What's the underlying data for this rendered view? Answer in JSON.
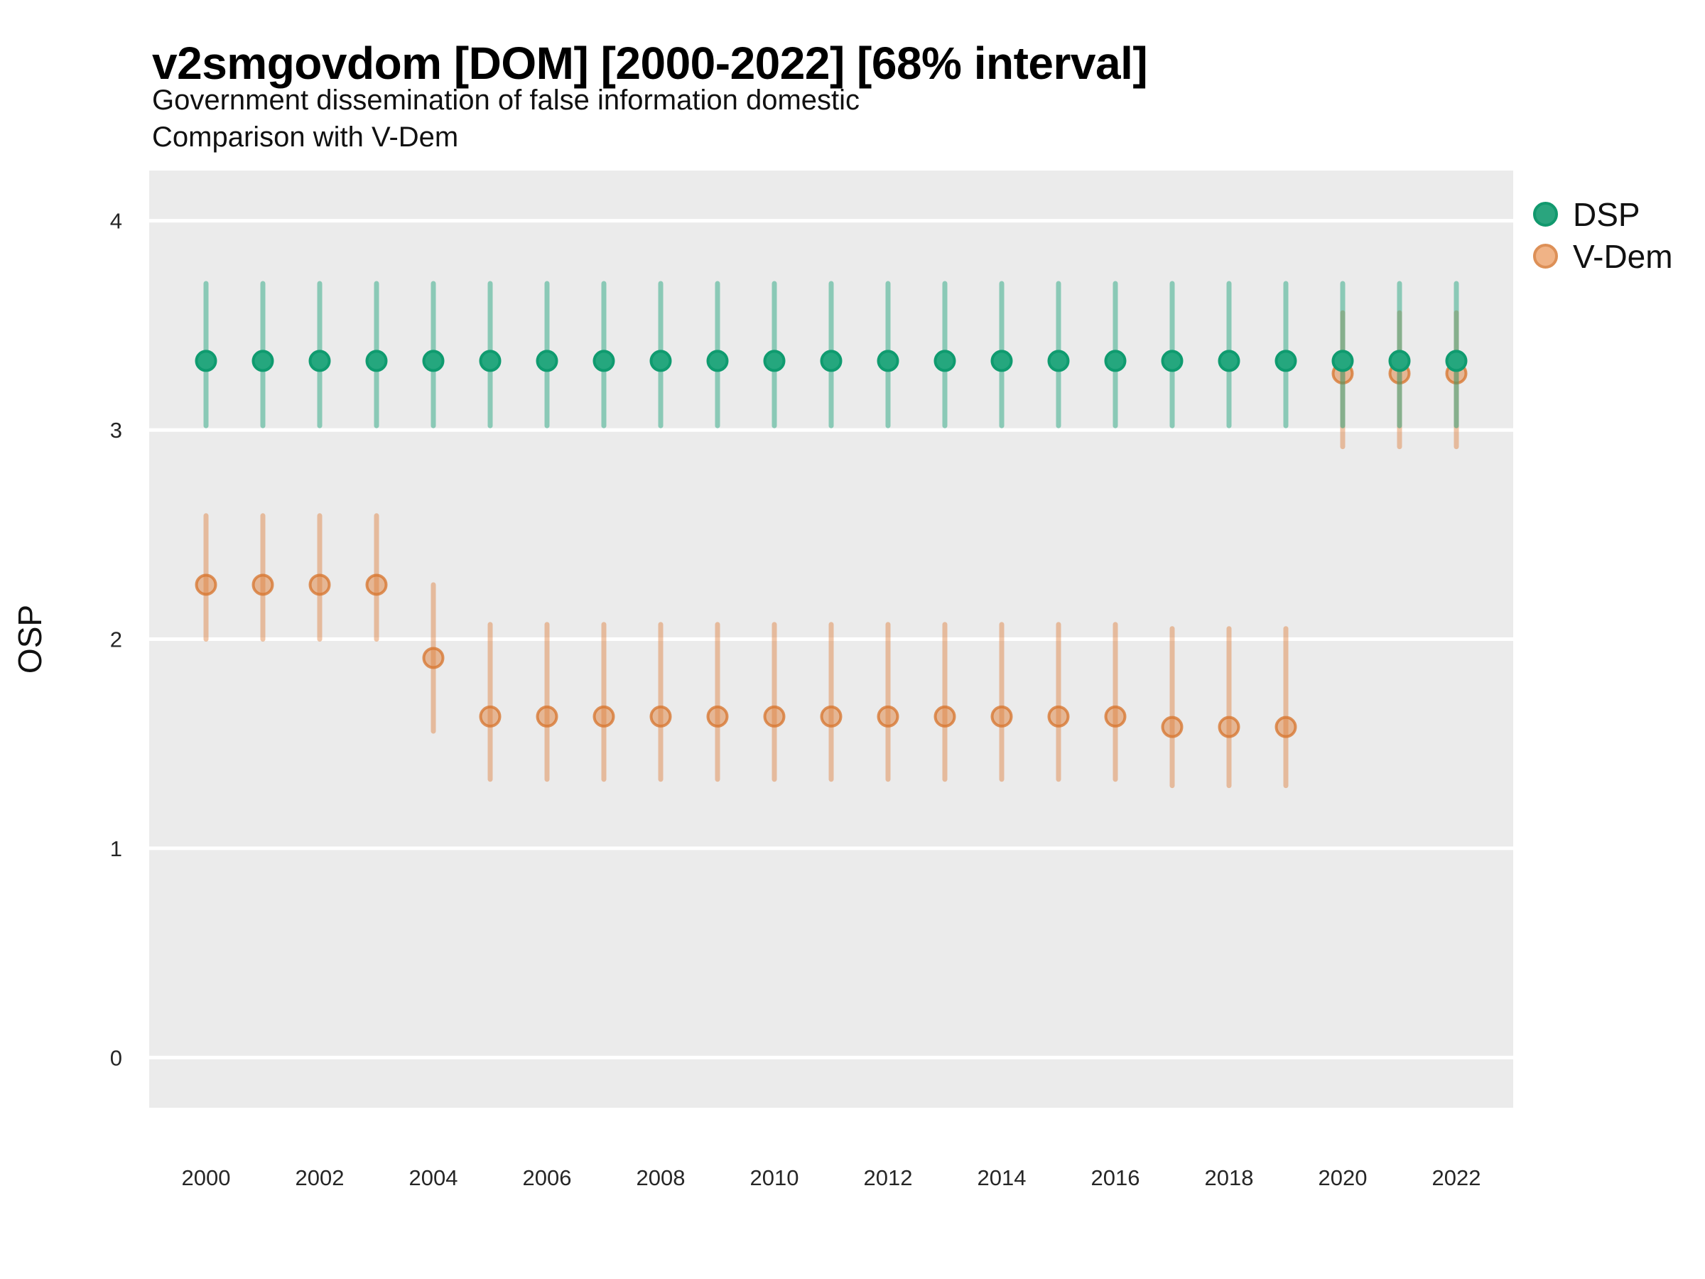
{
  "header": {
    "title": "v2smgovdom [DOM] [2000-2022] [68% interval]",
    "subtitle1": "Government dissemination of false information domestic",
    "subtitle2": "Comparison with V-Dem"
  },
  "colors": {
    "panel_bg": "#ebebeb",
    "grid": "#ffffff",
    "tick_text": "#262626",
    "axis_title_text": "#111111"
  },
  "chart_data": {
    "type": "scatter",
    "title": "v2smgovdom [DOM] [2000-2022] [68% interval]",
    "subtitle": "Government dissemination of false information domestic — Comparison with V-Dem",
    "xlabel": "",
    "ylabel": "OSP",
    "ylim": [
      -0.24,
      4.24
    ],
    "xlim": [
      1999,
      2023
    ],
    "yticks": [
      0,
      1,
      2,
      3,
      4
    ],
    "xticks": [
      2000,
      2002,
      2004,
      2006,
      2008,
      2010,
      2012,
      2014,
      2016,
      2018,
      2020,
      2022
    ],
    "grid": "horizontal-major-only",
    "legend_position": "right",
    "interval_note": "error bars show 68% interval",
    "series": [
      {
        "name": "DSP",
        "fill": "#25a77e",
        "stroke": "#0f9b6f",
        "bar_color": "rgba(32,164,124,0.48)",
        "legend_fill": "#2aa57e",
        "legend_stroke": "#12996e",
        "points": [
          {
            "x": 2000,
            "est": 3.33,
            "lo": 3.02,
            "hi": 3.7
          },
          {
            "x": 2001,
            "est": 3.33,
            "lo": 3.02,
            "hi": 3.7
          },
          {
            "x": 2002,
            "est": 3.33,
            "lo": 3.02,
            "hi": 3.7
          },
          {
            "x": 2003,
            "est": 3.33,
            "lo": 3.02,
            "hi": 3.7
          },
          {
            "x": 2004,
            "est": 3.33,
            "lo": 3.02,
            "hi": 3.7
          },
          {
            "x": 2005,
            "est": 3.33,
            "lo": 3.02,
            "hi": 3.7
          },
          {
            "x": 2006,
            "est": 3.33,
            "lo": 3.02,
            "hi": 3.7
          },
          {
            "x": 2007,
            "est": 3.33,
            "lo": 3.02,
            "hi": 3.7
          },
          {
            "x": 2008,
            "est": 3.33,
            "lo": 3.02,
            "hi": 3.7
          },
          {
            "x": 2009,
            "est": 3.33,
            "lo": 3.02,
            "hi": 3.7
          },
          {
            "x": 2010,
            "est": 3.33,
            "lo": 3.02,
            "hi": 3.7
          },
          {
            "x": 2011,
            "est": 3.33,
            "lo": 3.02,
            "hi": 3.7
          },
          {
            "x": 2012,
            "est": 3.33,
            "lo": 3.02,
            "hi": 3.7
          },
          {
            "x": 2013,
            "est": 3.33,
            "lo": 3.02,
            "hi": 3.7
          },
          {
            "x": 2014,
            "est": 3.33,
            "lo": 3.02,
            "hi": 3.7
          },
          {
            "x": 2015,
            "est": 3.33,
            "lo": 3.02,
            "hi": 3.7
          },
          {
            "x": 2016,
            "est": 3.33,
            "lo": 3.02,
            "hi": 3.7
          },
          {
            "x": 2017,
            "est": 3.33,
            "lo": 3.02,
            "hi": 3.7
          },
          {
            "x": 2018,
            "est": 3.33,
            "lo": 3.02,
            "hi": 3.7
          },
          {
            "x": 2019,
            "est": 3.33,
            "lo": 3.02,
            "hi": 3.7
          },
          {
            "x": 2020,
            "est": 3.33,
            "lo": 3.02,
            "hi": 3.7
          },
          {
            "x": 2021,
            "est": 3.33,
            "lo": 3.02,
            "hi": 3.7
          },
          {
            "x": 2022,
            "est": 3.33,
            "lo": 3.02,
            "hi": 3.7
          }
        ]
      },
      {
        "name": "V-Dem",
        "fill": "rgba(224,130,62,0.50)",
        "stroke": "rgba(215,118,48,0.78)",
        "bar_color": "rgba(222,126,60,0.45)",
        "legend_fill": "#f0b386",
        "legend_stroke": "#dd9057",
        "points": [
          {
            "x": 2000,
            "est": 2.26,
            "lo": 2.0,
            "hi": 2.59
          },
          {
            "x": 2001,
            "est": 2.26,
            "lo": 2.0,
            "hi": 2.59
          },
          {
            "x": 2002,
            "est": 2.26,
            "lo": 2.0,
            "hi": 2.59
          },
          {
            "x": 2003,
            "est": 2.26,
            "lo": 2.0,
            "hi": 2.59
          },
          {
            "x": 2004,
            "est": 1.91,
            "lo": 1.56,
            "hi": 2.26
          },
          {
            "x": 2005,
            "est": 1.63,
            "lo": 1.33,
            "hi": 2.07
          },
          {
            "x": 2006,
            "est": 1.63,
            "lo": 1.33,
            "hi": 2.07
          },
          {
            "x": 2007,
            "est": 1.63,
            "lo": 1.33,
            "hi": 2.07
          },
          {
            "x": 2008,
            "est": 1.63,
            "lo": 1.33,
            "hi": 2.07
          },
          {
            "x": 2009,
            "est": 1.63,
            "lo": 1.33,
            "hi": 2.07
          },
          {
            "x": 2010,
            "est": 1.63,
            "lo": 1.33,
            "hi": 2.07
          },
          {
            "x": 2011,
            "est": 1.63,
            "lo": 1.33,
            "hi": 2.07
          },
          {
            "x": 2012,
            "est": 1.63,
            "lo": 1.33,
            "hi": 2.07
          },
          {
            "x": 2013,
            "est": 1.63,
            "lo": 1.33,
            "hi": 2.07
          },
          {
            "x": 2014,
            "est": 1.63,
            "lo": 1.33,
            "hi": 2.07
          },
          {
            "x": 2015,
            "est": 1.63,
            "lo": 1.33,
            "hi": 2.07
          },
          {
            "x": 2016,
            "est": 1.63,
            "lo": 1.33,
            "hi": 2.07
          },
          {
            "x": 2017,
            "est": 1.58,
            "lo": 1.3,
            "hi": 2.05
          },
          {
            "x": 2018,
            "est": 1.58,
            "lo": 1.3,
            "hi": 2.05
          },
          {
            "x": 2019,
            "est": 1.58,
            "lo": 1.3,
            "hi": 2.05
          },
          {
            "x": 2020,
            "est": 3.27,
            "lo": 2.92,
            "hi": 3.56
          },
          {
            "x": 2021,
            "est": 3.27,
            "lo": 2.92,
            "hi": 3.56
          },
          {
            "x": 2022,
            "est": 3.27,
            "lo": 2.92,
            "hi": 3.56
          }
        ]
      }
    ]
  }
}
